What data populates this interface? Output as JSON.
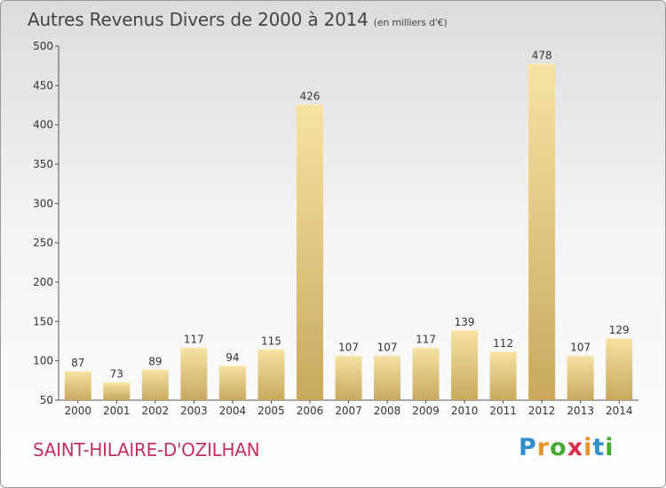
{
  "header": {
    "title": "Autres Revenus Divers de 2000 à 2014",
    "unit": "(en milliers d'€)"
  },
  "footer": {
    "commune": "SAINT-HILAIRE-D'OZILHAN",
    "logo": "Proxiti"
  },
  "colors": {
    "bar_light": "#f6e3a4",
    "bar_dark": "#c9a85e",
    "commune_text": "#c0335c"
  },
  "chart_data": {
    "type": "bar",
    "title": "Autres Revenus Divers de 2000 à 2014",
    "subtitle": "(en milliers d'€)",
    "xlabel": "",
    "ylabel": "",
    "categories": [
      "2000",
      "2001",
      "2002",
      "2003",
      "2004",
      "2005",
      "2006",
      "2007",
      "2008",
      "2009",
      "2010",
      "2011",
      "2012",
      "2013",
      "2014"
    ],
    "values": [
      87,
      73,
      89,
      117,
      94,
      115,
      426,
      107,
      107,
      117,
      139,
      112,
      478,
      107,
      129
    ],
    "ylim": [
      50,
      500
    ],
    "yticks": [
      50,
      100,
      150,
      200,
      250,
      300,
      350,
      400,
      450,
      500
    ],
    "grid": false,
    "data_labels": true
  }
}
